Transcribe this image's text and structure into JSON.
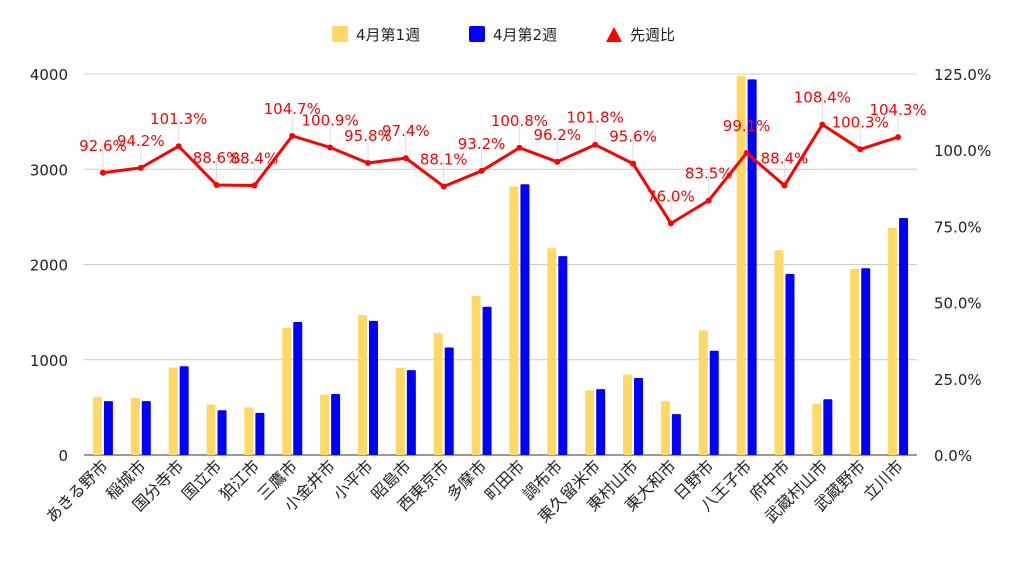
{
  "chart_data": {
    "type": "bar+line",
    "categories": [
      "あきる野市",
      "稲城市",
      "国分寺市",
      "国立市",
      "狛江市",
      "三鷹市",
      "小金井市",
      "小平市",
      "昭島市",
      "西東京市",
      "多摩市",
      "町田市",
      "調布市",
      "東久留米市",
      "東村山市",
      "東大和市",
      "日野市",
      "八王子市",
      "府中市",
      "武蔵村山市",
      "武蔵野市",
      "立川市"
    ],
    "series": [
      {
        "name": "4月第1週",
        "axis": "left",
        "type": "bar",
        "color": "#FFD966",
        "values": [
          610,
          600,
          920,
          530,
          500,
          1333,
          635,
          1470,
          915,
          1280,
          1670,
          2820,
          2170,
          680,
          845,
          565,
          1310,
          3980,
          2150,
          540,
          1955,
          2385
        ]
      },
      {
        "name": "4月第2週",
        "axis": "left",
        "type": "bar",
        "color": "#0000FF",
        "values": [
          565,
          565,
          932,
          470,
          442,
          1396,
          641,
          1408,
          891,
          1128,
          1556,
          2843,
          2088,
          692,
          808,
          429,
          1094,
          3944,
          1900,
          585,
          1961,
          2488
        ]
      },
      {
        "name": "先週比",
        "axis": "right",
        "type": "line",
        "color": "#FF0000",
        "values": [
          92.6,
          94.2,
          101.3,
          88.6,
          88.4,
          104.7,
          100.9,
          95.8,
          97.4,
          88.1,
          93.2,
          100.8,
          96.2,
          101.8,
          95.6,
          76.0,
          83.5,
          99.1,
          88.4,
          108.4,
          100.3,
          104.3
        ],
        "labels": [
          "92.6%",
          "94.2%",
          "101.3%",
          "88.6%",
          "88.4%",
          "104.7%",
          "100.9%",
          "95.8%",
          "97.4%",
          "88.1%",
          "93.2%",
          "100.8%",
          "96.2%",
          "101.8%",
          "95.6%",
          "76.0%",
          "83.5%",
          "99.1%",
          "88.4%",
          "108.4%",
          "100.3%",
          "104.3%"
        ]
      }
    ],
    "left_axis": {
      "ylim": [
        0,
        4000
      ],
      "ticks": [
        "0",
        "1000",
        "2000",
        "3000",
        "4000"
      ]
    },
    "right_axis": {
      "ylim": [
        0,
        125
      ],
      "ticks": [
        "0.0%",
        "25.0%",
        "50.0%",
        "75.0%",
        "100.0%",
        "125.0%"
      ]
    },
    "grid": true,
    "legend": {
      "placement": "top",
      "items": [
        "4月第1週",
        "4月第2週",
        "先週比"
      ]
    }
  }
}
